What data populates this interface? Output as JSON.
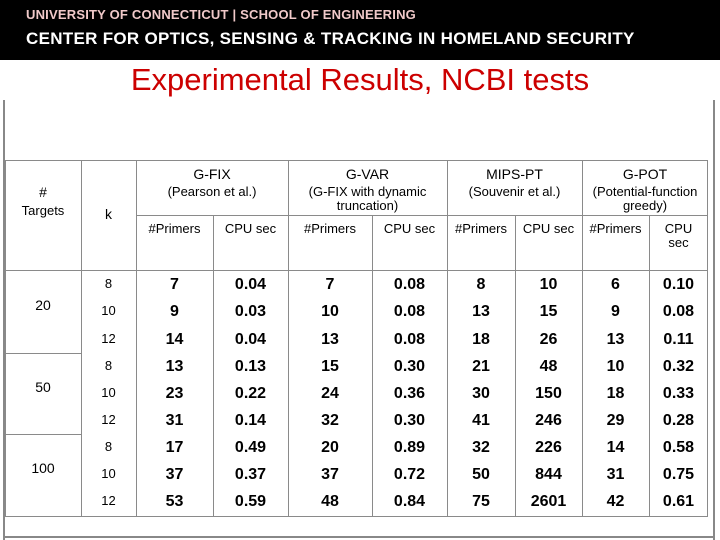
{
  "banner": {
    "line1": "UNIVERSITY OF CONNECTICUT  |  SCHOOL OF ENGINEERING",
    "line2": "CENTER FOR OPTICS, SENSING & TRACKING IN HOMELAND SECURITY"
  },
  "slide": {
    "title": "Experimental Results, NCBI tests"
  },
  "table": {
    "targets_header": [
      "#",
      "Targets"
    ],
    "k_header": "k",
    "methods": [
      {
        "name": "G-FIX",
        "desc": "(Pearson et al.)"
      },
      {
        "name": "G-VAR",
        "desc": "(G-FIX with dynamic truncation)"
      },
      {
        "name": "MIPS-PT",
        "desc": "(Souvenir et al.)"
      },
      {
        "name": "G-POT",
        "desc": "(Potential-function greedy)"
      }
    ],
    "subheaders": {
      "primers": "#Primers",
      "cpu": "CPU sec"
    },
    "target_groups": [
      "20",
      "50",
      "100"
    ],
    "k_values": [
      "8",
      "10",
      "12",
      "8",
      "10",
      "12",
      "8",
      "10",
      "12"
    ],
    "rows": [
      [
        "7",
        "0.04",
        "7",
        "0.08",
        "8",
        "10",
        "6",
        "0.10"
      ],
      [
        "9",
        "0.03",
        "10",
        "0.08",
        "13",
        "15",
        "9",
        "0.08"
      ],
      [
        "14",
        "0.04",
        "13",
        "0.08",
        "18",
        "26",
        "13",
        "0.11"
      ],
      [
        "13",
        "0.13",
        "15",
        "0.30",
        "21",
        "48",
        "10",
        "0.32"
      ],
      [
        "23",
        "0.22",
        "24",
        "0.36",
        "30",
        "150",
        "18",
        "0.33"
      ],
      [
        "31",
        "0.14",
        "32",
        "0.30",
        "41",
        "246",
        "29",
        "0.28"
      ],
      [
        "17",
        "0.49",
        "20",
        "0.89",
        "32",
        "226",
        "14",
        "0.58"
      ],
      [
        "37",
        "0.37",
        "37",
        "0.72",
        "50",
        "844",
        "31",
        "0.75"
      ],
      [
        "53",
        "0.59",
        "48",
        "0.84",
        "75",
        "2601",
        "42",
        "0.61"
      ]
    ]
  }
}
